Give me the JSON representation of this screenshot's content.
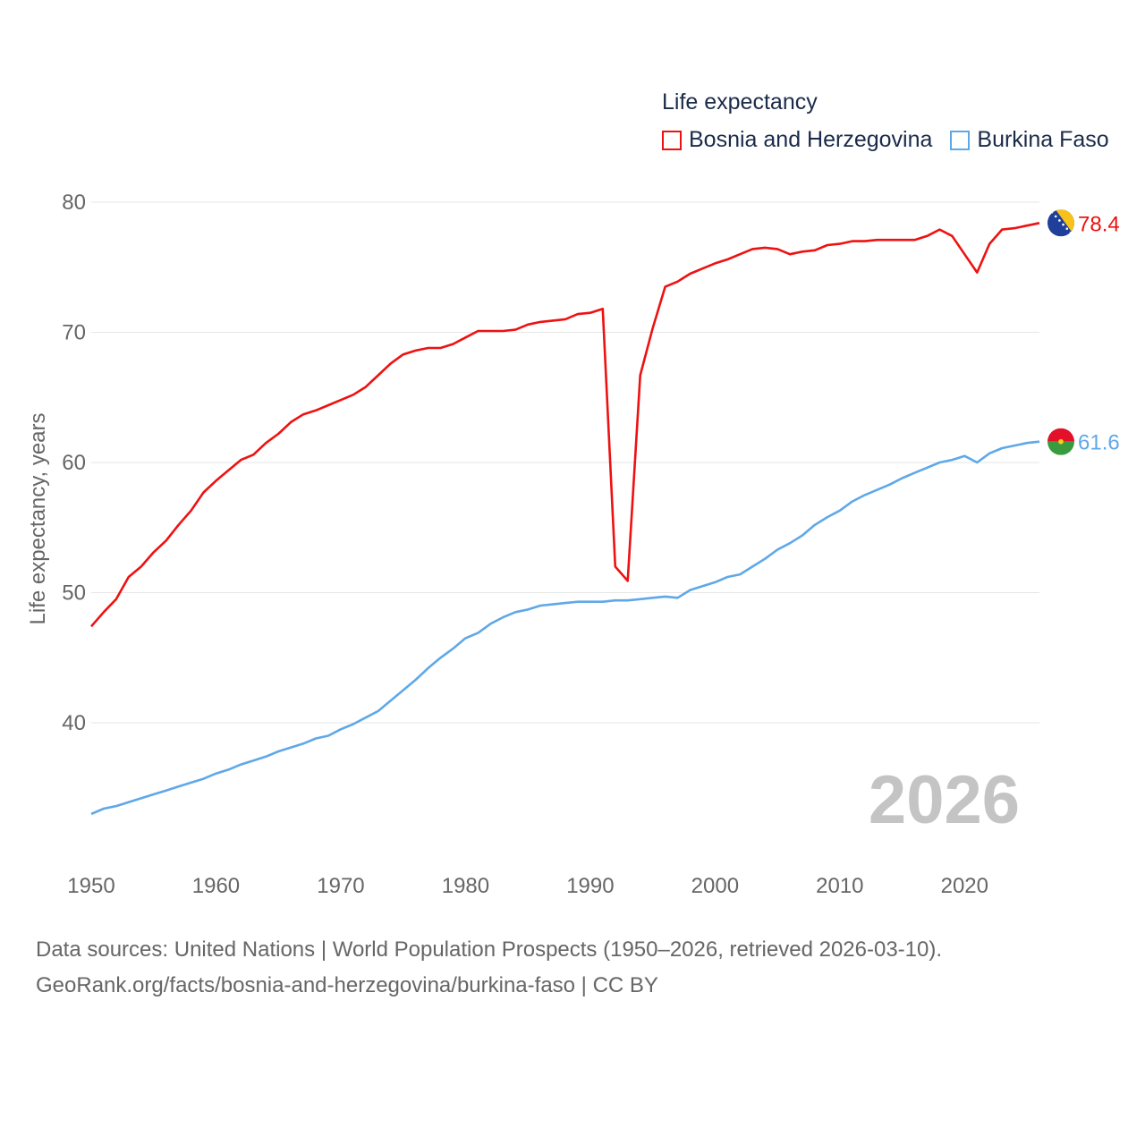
{
  "legend": {
    "title": "Life expectancy",
    "series": [
      {
        "name": "Bosnia and Herzegovina",
        "color": "#ee1111"
      },
      {
        "name": "Burkina Faso",
        "color": "#5fa8e8"
      }
    ]
  },
  "year_watermark": "2026",
  "footer": {
    "line1": "Data sources: United Nations | World Population Prospects (1950–2026, retrieved 2026-03-10).",
    "line2": "GeoRank.org/facts/bosnia-and-herzegovina/burkina-faso | CC BY"
  },
  "chart_data": {
    "type": "line",
    "title": "Life expectancy",
    "xlabel": "",
    "ylabel": "Life expectancy, years",
    "xlim": [
      1950,
      2026
    ],
    "ylim": [
      30,
      82
    ],
    "x_ticks": [
      1950,
      1960,
      1970,
      1980,
      1990,
      2000,
      2010,
      2020
    ],
    "y_ticks": [
      40,
      50,
      60,
      70,
      80
    ],
    "grid": true,
    "legend_position": "top-right",
    "series": [
      {
        "name": "Bosnia and Herzegovina",
        "color": "#ee1111",
        "end_label": "78.4",
        "flag": "bosnia-and-herzegovina-flag-icon",
        "points": [
          [
            1950,
            47.4
          ],
          [
            1951,
            48.5
          ],
          [
            1952,
            49.5
          ],
          [
            1953,
            51.2
          ],
          [
            1954,
            52.0
          ],
          [
            1955,
            53.1
          ],
          [
            1956,
            54.0
          ],
          [
            1957,
            55.2
          ],
          [
            1958,
            56.3
          ],
          [
            1959,
            57.7
          ],
          [
            1960,
            58.6
          ],
          [
            1961,
            59.4
          ],
          [
            1962,
            60.2
          ],
          [
            1963,
            60.6
          ],
          [
            1964,
            61.5
          ],
          [
            1965,
            62.2
          ],
          [
            1966,
            63.1
          ],
          [
            1967,
            63.7
          ],
          [
            1968,
            64.0
          ],
          [
            1969,
            64.4
          ],
          [
            1970,
            64.8
          ],
          [
            1971,
            65.2
          ],
          [
            1972,
            65.8
          ],
          [
            1973,
            66.7
          ],
          [
            1974,
            67.6
          ],
          [
            1975,
            68.3
          ],
          [
            1976,
            68.6
          ],
          [
            1977,
            68.8
          ],
          [
            1978,
            68.8
          ],
          [
            1979,
            69.1
          ],
          [
            1980,
            69.6
          ],
          [
            1981,
            70.1
          ],
          [
            1982,
            70.1
          ],
          [
            1983,
            70.1
          ],
          [
            1984,
            70.2
          ],
          [
            1985,
            70.6
          ],
          [
            1986,
            70.8
          ],
          [
            1987,
            70.9
          ],
          [
            1988,
            71.0
          ],
          [
            1989,
            71.4
          ],
          [
            1990,
            71.5
          ],
          [
            1991,
            71.8
          ],
          [
            1992,
            52.0
          ],
          [
            1993,
            50.9
          ],
          [
            1994,
            66.7
          ],
          [
            1995,
            70.3
          ],
          [
            1996,
            73.5
          ],
          [
            1997,
            73.9
          ],
          [
            1998,
            74.5
          ],
          [
            1999,
            74.9
          ],
          [
            2000,
            75.3
          ],
          [
            2001,
            75.6
          ],
          [
            2002,
            76.0
          ],
          [
            2003,
            76.4
          ],
          [
            2004,
            76.5
          ],
          [
            2005,
            76.4
          ],
          [
            2006,
            76.0
          ],
          [
            2007,
            76.2
          ],
          [
            2008,
            76.3
          ],
          [
            2009,
            76.7
          ],
          [
            2010,
            76.8
          ],
          [
            2011,
            77.0
          ],
          [
            2012,
            77.0
          ],
          [
            2013,
            77.1
          ],
          [
            2014,
            77.1
          ],
          [
            2015,
            77.1
          ],
          [
            2016,
            77.1
          ],
          [
            2017,
            77.4
          ],
          [
            2018,
            77.9
          ],
          [
            2019,
            77.4
          ],
          [
            2020,
            76.0
          ],
          [
            2021,
            74.6
          ],
          [
            2022,
            76.8
          ],
          [
            2023,
            77.9
          ],
          [
            2024,
            78.0
          ],
          [
            2025,
            78.2
          ],
          [
            2026,
            78.4
          ]
        ]
      },
      {
        "name": "Burkina Faso",
        "color": "#5fa8e8",
        "end_label": "61.6",
        "flag": "burkina-faso-flag-icon",
        "points": [
          [
            1950,
            33.0
          ],
          [
            1951,
            33.4
          ],
          [
            1952,
            33.6
          ],
          [
            1953,
            33.9
          ],
          [
            1954,
            34.2
          ],
          [
            1955,
            34.5
          ],
          [
            1956,
            34.8
          ],
          [
            1957,
            35.1
          ],
          [
            1958,
            35.4
          ],
          [
            1959,
            35.7
          ],
          [
            1960,
            36.1
          ],
          [
            1961,
            36.4
          ],
          [
            1962,
            36.8
          ],
          [
            1963,
            37.1
          ],
          [
            1964,
            37.4
          ],
          [
            1965,
            37.8
          ],
          [
            1966,
            38.1
          ],
          [
            1967,
            38.4
          ],
          [
            1968,
            38.8
          ],
          [
            1969,
            39.0
          ],
          [
            1970,
            39.5
          ],
          [
            1971,
            39.9
          ],
          [
            1972,
            40.4
          ],
          [
            1973,
            40.9
          ],
          [
            1974,
            41.7
          ],
          [
            1975,
            42.5
          ],
          [
            1976,
            43.3
          ],
          [
            1977,
            44.2
          ],
          [
            1978,
            45.0
          ],
          [
            1979,
            45.7
          ],
          [
            1980,
            46.5
          ],
          [
            1981,
            46.9
          ],
          [
            1982,
            47.6
          ],
          [
            1983,
            48.1
          ],
          [
            1984,
            48.5
          ],
          [
            1985,
            48.7
          ],
          [
            1986,
            49.0
          ],
          [
            1987,
            49.1
          ],
          [
            1988,
            49.2
          ],
          [
            1989,
            49.3
          ],
          [
            1990,
            49.3
          ],
          [
            1991,
            49.3
          ],
          [
            1992,
            49.4
          ],
          [
            1993,
            49.4
          ],
          [
            1994,
            49.5
          ],
          [
            1995,
            49.6
          ],
          [
            1996,
            49.7
          ],
          [
            1997,
            49.6
          ],
          [
            1998,
            50.2
          ],
          [
            1999,
            50.5
          ],
          [
            2000,
            50.8
          ],
          [
            2001,
            51.2
          ],
          [
            2002,
            51.4
          ],
          [
            2003,
            52.0
          ],
          [
            2004,
            52.6
          ],
          [
            2005,
            53.3
          ],
          [
            2006,
            53.8
          ],
          [
            2007,
            54.4
          ],
          [
            2008,
            55.2
          ],
          [
            2009,
            55.8
          ],
          [
            2010,
            56.3
          ],
          [
            2011,
            57.0
          ],
          [
            2012,
            57.5
          ],
          [
            2013,
            57.9
          ],
          [
            2014,
            58.3
          ],
          [
            2015,
            58.8
          ],
          [
            2016,
            59.2
          ],
          [
            2017,
            59.6
          ],
          [
            2018,
            60.0
          ],
          [
            2019,
            60.2
          ],
          [
            2020,
            60.5
          ],
          [
            2021,
            60.0
          ],
          [
            2022,
            60.7
          ],
          [
            2023,
            61.1
          ],
          [
            2024,
            61.3
          ],
          [
            2025,
            61.5
          ],
          [
            2026,
            61.6
          ]
        ]
      }
    ]
  }
}
